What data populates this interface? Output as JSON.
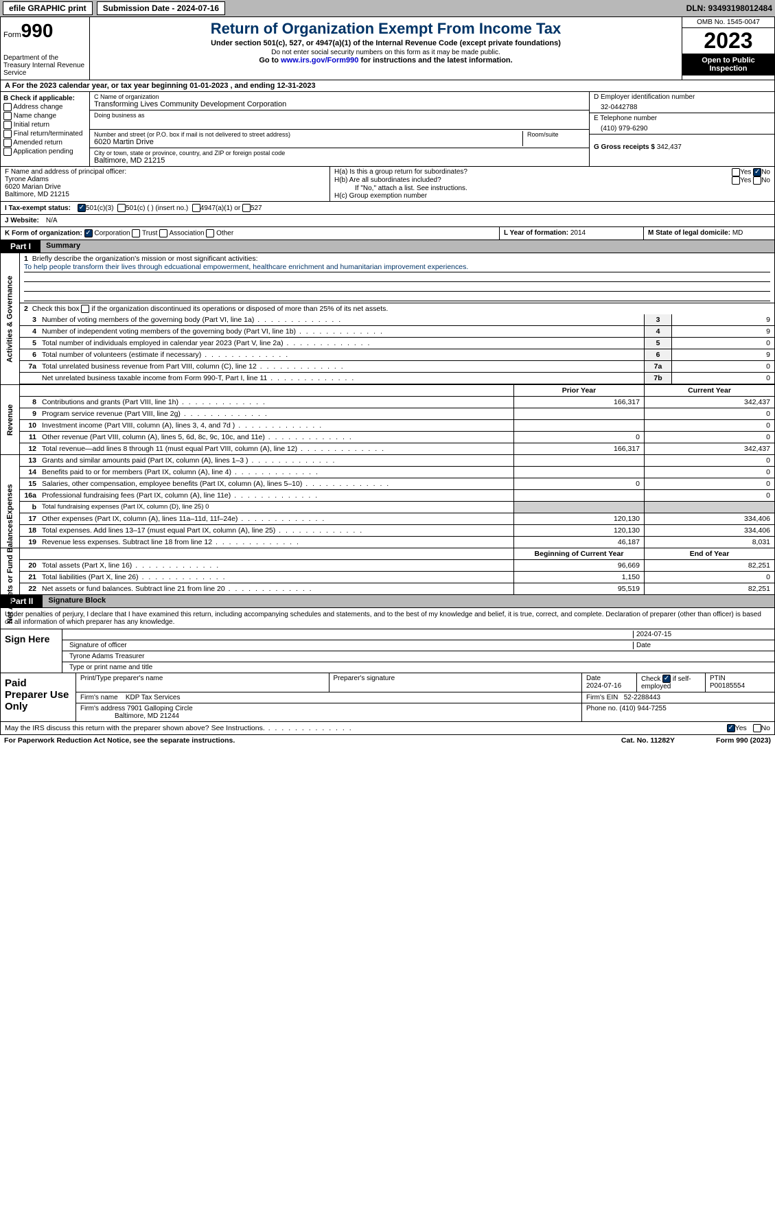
{
  "topbar": {
    "efile": "efile GRAPHIC print",
    "submission": "Submission Date - 2024-07-16",
    "dln": "DLN: 93493198012484"
  },
  "header": {
    "form_word": "Form",
    "form_num": "990",
    "dept": "Department of the Treasury Internal Revenue Service",
    "title": "Return of Organization Exempt From Income Tax",
    "subtitle": "Under section 501(c), 527, or 4947(a)(1) of the Internal Revenue Code (except private foundations)",
    "note": "Do not enter social security numbers on this form as it may be made public.",
    "goto_prefix": "Go to ",
    "goto_link": "www.irs.gov/Form990",
    "goto_suffix": " for instructions and the latest information.",
    "omb": "OMB No. 1545-0047",
    "year": "2023",
    "inspection": "Open to Public Inspection"
  },
  "taxyear": {
    "text": "A For the 2023 calendar year, or tax year beginning 01-01-2023   , and ending 12-31-2023"
  },
  "boxB": {
    "title": "B Check if applicable:",
    "items": [
      "Address change",
      "Name change",
      "Initial return",
      "Final return/terminated",
      "Amended return",
      "Application pending"
    ]
  },
  "boxC": {
    "name_label": "C Name of organization",
    "name": "Transforming Lives Community Development Corporation",
    "dba_label": "Doing business as",
    "addr_label": "Number and street (or P.O. box if mail is not delivered to street address)",
    "addr": "6020 Martin Drive",
    "room_label": "Room/suite",
    "city_label": "City or town, state or province, country, and ZIP or foreign postal code",
    "city": "Baltimore, MD  21215"
  },
  "boxD": {
    "label": "D Employer identification number",
    "val": "32-0442788"
  },
  "boxE": {
    "label": "E Telephone number",
    "val": "(410) 979-6290"
  },
  "boxG": {
    "label": "G Gross receipts $",
    "val": "342,437"
  },
  "boxF": {
    "label": "F  Name and address of principal officer:",
    "name": "Tyrone Adams",
    "addr1": "6020 Marian Drive",
    "addr2": "Baltimore, MD  21215"
  },
  "boxH": {
    "ha": "H(a)  Is this a group return for subordinates?",
    "hb": "H(b)  Are all subordinates included?",
    "hb_note": "If \"No,\" attach a list. See instructions.",
    "hc": "H(c)  Group exemption number",
    "yes": "Yes",
    "no": "No"
  },
  "boxI": {
    "label": "I   Tax-exempt status:",
    "opts": [
      "501(c)(3)",
      "501(c) (  ) (insert no.)",
      "4947(a)(1) or",
      "527"
    ]
  },
  "boxJ": {
    "label": "J   Website:",
    "val": "N/A"
  },
  "boxK": {
    "label": "K Form of organization:",
    "opts": [
      "Corporation",
      "Trust",
      "Association",
      "Other"
    ]
  },
  "boxL": {
    "label": "L Year of formation:",
    "val": "2014"
  },
  "boxM": {
    "label": "M State of legal domicile:",
    "val": "MD"
  },
  "part1": {
    "hdr": "Part I",
    "title": "Summary"
  },
  "mission": {
    "q": "Briefly describe the organization's mission or most significant activities:",
    "a": "To help people transform their lives through edcuational empowerment, healthcare enrichment and humanitarian improvement experiences."
  },
  "line2": "Check this box  if the organization discontinued its operations or disposed of more than 25% of its net assets.",
  "gov_lines": [
    {
      "n": "3",
      "t": "Number of voting members of the governing body (Part VI, line 1a)",
      "box": "3",
      "v": "9"
    },
    {
      "n": "4",
      "t": "Number of independent voting members of the governing body (Part VI, line 1b)",
      "box": "4",
      "v": "9"
    },
    {
      "n": "5",
      "t": "Total number of individuals employed in calendar year 2023 (Part V, line 2a)",
      "box": "5",
      "v": "0"
    },
    {
      "n": "6",
      "t": "Total number of volunteers (estimate if necessary)",
      "box": "6",
      "v": "9"
    },
    {
      "n": "7a",
      "t": "Total unrelated business revenue from Part VIII, column (C), line 12",
      "box": "7a",
      "v": "0"
    },
    {
      "n": "",
      "t": "Net unrelated business taxable income from Form 990-T, Part I, line 11",
      "box": "7b",
      "v": "0"
    }
  ],
  "col_hdrs": {
    "prior": "Prior Year",
    "current": "Current Year",
    "boy": "Beginning of Current Year",
    "eoy": "End of Year"
  },
  "rev_lines": [
    {
      "n": "8",
      "t": "Contributions and grants (Part VIII, line 1h)",
      "p": "166,317",
      "c": "342,437"
    },
    {
      "n": "9",
      "t": "Program service revenue (Part VIII, line 2g)",
      "p": "",
      "c": "0"
    },
    {
      "n": "10",
      "t": "Investment income (Part VIII, column (A), lines 3, 4, and 7d )",
      "p": "",
      "c": "0"
    },
    {
      "n": "11",
      "t": "Other revenue (Part VIII, column (A), lines 5, 6d, 8c, 9c, 10c, and 11e)",
      "p": "0",
      "c": "0"
    },
    {
      "n": "12",
      "t": "Total revenue—add lines 8 through 11 (must equal Part VIII, column (A), line 12)",
      "p": "166,317",
      "c": "342,437"
    }
  ],
  "exp_lines": [
    {
      "n": "13",
      "t": "Grants and similar amounts paid (Part IX, column (A), lines 1–3 )",
      "p": "",
      "c": "0"
    },
    {
      "n": "14",
      "t": "Benefits paid to or for members (Part IX, column (A), line 4)",
      "p": "",
      "c": "0"
    },
    {
      "n": "15",
      "t": "Salaries, other compensation, employee benefits (Part IX, column (A), lines 5–10)",
      "p": "0",
      "c": "0"
    },
    {
      "n": "16a",
      "t": "Professional fundraising fees (Part IX, column (A), line 11e)",
      "p": "",
      "c": "0"
    },
    {
      "n": "b",
      "t": "Total fundraising expenses (Part IX, column (D), line 25) 0",
      "p": "grey",
      "c": "grey"
    },
    {
      "n": "17",
      "t": "Other expenses (Part IX, column (A), lines 11a–11d, 11f–24e)",
      "p": "120,130",
      "c": "334,406"
    },
    {
      "n": "18",
      "t": "Total expenses. Add lines 13–17 (must equal Part IX, column (A), line 25)",
      "p": "120,130",
      "c": "334,406"
    },
    {
      "n": "19",
      "t": "Revenue less expenses. Subtract line 18 from line 12",
      "p": "46,187",
      "c": "8,031"
    }
  ],
  "na_lines": [
    {
      "n": "20",
      "t": "Total assets (Part X, line 16)",
      "p": "96,669",
      "c": "82,251"
    },
    {
      "n": "21",
      "t": "Total liabilities (Part X, line 26)",
      "p": "1,150",
      "c": "0"
    },
    {
      "n": "22",
      "t": "Net assets or fund balances. Subtract line 21 from line 20",
      "p": "95,519",
      "c": "82,251"
    }
  ],
  "part2": {
    "hdr": "Part II",
    "title": "Signature Block"
  },
  "perjury": "Under penalties of perjury, I declare that I have examined this return, including accompanying schedules and statements, and to the best of my knowledge and belief, it is true, correct, and complete. Declaration of preparer (other than officer) is based on all information of which preparer has any knowledge.",
  "sign": {
    "here": "Sign Here",
    "date": "2024-07-15",
    "sig_label": "Signature of officer",
    "date_label": "Date",
    "name": "Tyrone Adams  Treasurer",
    "name_label": "Type or print name and title"
  },
  "prep": {
    "title": "Paid Preparer Use Only",
    "h1": "Print/Type preparer's name",
    "h2": "Preparer's signature",
    "h3": "Date",
    "h3v": "2024-07-16",
    "h4": "Check  if self-employed",
    "h5": "PTIN",
    "h5v": "P00185554",
    "firm_label": "Firm's name",
    "firm": "KDP Tax Services",
    "ein_label": "Firm's EIN",
    "ein": "52-2288443",
    "addr_label": "Firm's address",
    "addr": "7901 Galloping Circle",
    "addr2": "Baltimore, MD  21244",
    "phone_label": "Phone no.",
    "phone": "(410) 944-7255"
  },
  "discuss": {
    "q": "May the IRS discuss this return with the preparer shown above? See Instructions.",
    "yes": "Yes",
    "no": "No"
  },
  "footer": {
    "l": "For Paperwork Reduction Act Notice, see the separate instructions.",
    "m": "Cat. No. 11282Y",
    "r": "Form 990 (2023)"
  },
  "sidebar_labels": {
    "gov": "Activities & Governance",
    "rev": "Revenue",
    "exp": "Expenses",
    "na": "Net Assets or Fund Balances"
  }
}
